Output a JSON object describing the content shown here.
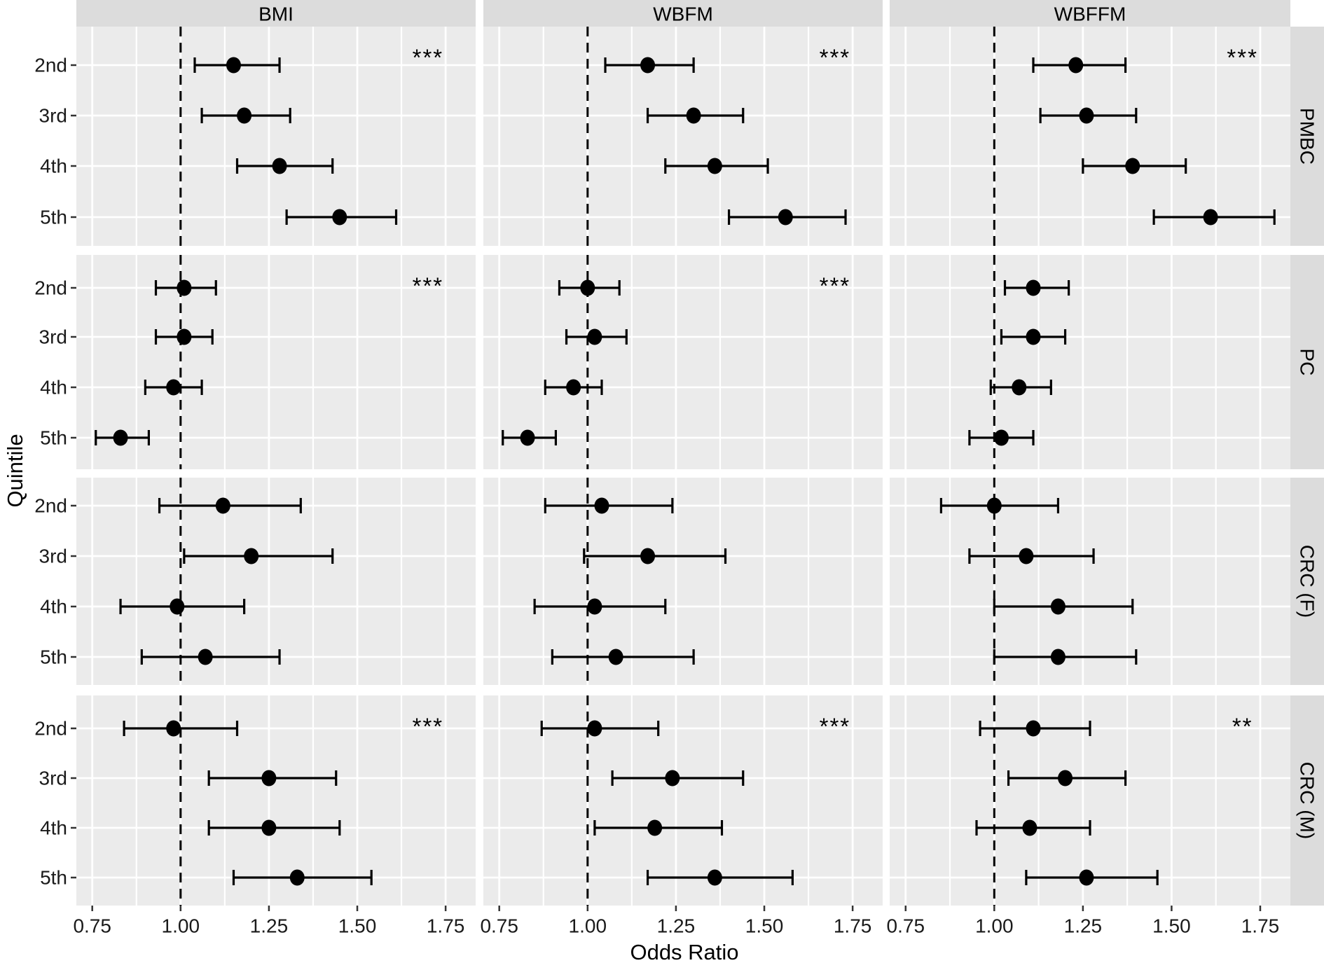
{
  "colors": {
    "background": "#FFFFFF",
    "panel_background": "#EBEBEB",
    "strip_background": "#DCDCDC",
    "gridline": "#FFFFFF",
    "data_color": "#000000",
    "axis_text": "#1A1A1A",
    "title_text": "#000000"
  },
  "chart_data": {
    "type": "forest",
    "title": "",
    "xlabel": "Odds Ratio",
    "ylabel": "Quintile",
    "x_domain": [
      0.705,
      1.835
    ],
    "x_tick_values": [
      0.75,
      1.0,
      1.25,
      1.5,
      1.75
    ],
    "x_tick_labels": [
      "0.75",
      "1.00",
      "1.25",
      "1.50",
      "1.75"
    ],
    "x_minor_gridlines": [
      0.875,
      1.125,
      1.375,
      1.625
    ],
    "reference_line": 1.0,
    "grid": "on",
    "facet_columns": [
      "BMI",
      "WBFM",
      "WBFFM"
    ],
    "facet_rows": [
      "PMBC",
      "PC",
      "CRC (F)",
      "CRC (M)"
    ],
    "y_categories": [
      "2nd",
      "3rd",
      "4th",
      "5th"
    ],
    "panels": [
      {
        "facet_col": "BMI",
        "facet_row": "PMBC",
        "significance": "***",
        "estimates": [
          {
            "quintile": "2nd",
            "or": 1.15,
            "ci_low": 1.04,
            "ci_high": 1.28
          },
          {
            "quintile": "3rd",
            "or": 1.18,
            "ci_low": 1.06,
            "ci_high": 1.31
          },
          {
            "quintile": "4th",
            "or": 1.28,
            "ci_low": 1.16,
            "ci_high": 1.43
          },
          {
            "quintile": "5th",
            "or": 1.45,
            "ci_low": 1.3,
            "ci_high": 1.61
          }
        ]
      },
      {
        "facet_col": "WBFM",
        "facet_row": "PMBC",
        "significance": "***",
        "estimates": [
          {
            "quintile": "2nd",
            "or": 1.17,
            "ci_low": 1.05,
            "ci_high": 1.3
          },
          {
            "quintile": "3rd",
            "or": 1.3,
            "ci_low": 1.17,
            "ci_high": 1.44
          },
          {
            "quintile": "4th",
            "or": 1.36,
            "ci_low": 1.22,
            "ci_high": 1.51
          },
          {
            "quintile": "5th",
            "or": 1.56,
            "ci_low": 1.4,
            "ci_high": 1.73
          }
        ]
      },
      {
        "facet_col": "WBFFM",
        "facet_row": "PMBC",
        "significance": "***",
        "estimates": [
          {
            "quintile": "2nd",
            "or": 1.23,
            "ci_low": 1.11,
            "ci_high": 1.37
          },
          {
            "quintile": "3rd",
            "or": 1.26,
            "ci_low": 1.13,
            "ci_high": 1.4
          },
          {
            "quintile": "4th",
            "or": 1.39,
            "ci_low": 1.25,
            "ci_high": 1.54
          },
          {
            "quintile": "5th",
            "or": 1.61,
            "ci_low": 1.45,
            "ci_high": 1.79
          }
        ]
      },
      {
        "facet_col": "BMI",
        "facet_row": "PC",
        "significance": "***",
        "estimates": [
          {
            "quintile": "2nd",
            "or": 1.01,
            "ci_low": 0.93,
            "ci_high": 1.1
          },
          {
            "quintile": "3rd",
            "or": 1.01,
            "ci_low": 0.93,
            "ci_high": 1.09
          },
          {
            "quintile": "4th",
            "or": 0.98,
            "ci_low": 0.9,
            "ci_high": 1.06
          },
          {
            "quintile": "5th",
            "or": 0.83,
            "ci_low": 0.76,
            "ci_high": 0.91
          }
        ]
      },
      {
        "facet_col": "WBFM",
        "facet_row": "PC",
        "significance": "***",
        "estimates": [
          {
            "quintile": "2nd",
            "or": 1.0,
            "ci_low": 0.92,
            "ci_high": 1.09
          },
          {
            "quintile": "3rd",
            "or": 1.02,
            "ci_low": 0.94,
            "ci_high": 1.11
          },
          {
            "quintile": "4th",
            "or": 0.96,
            "ci_low": 0.88,
            "ci_high": 1.04
          },
          {
            "quintile": "5th",
            "or": 0.83,
            "ci_low": 0.76,
            "ci_high": 0.91
          }
        ]
      },
      {
        "facet_col": "WBFFM",
        "facet_row": "PC",
        "significance": "",
        "estimates": [
          {
            "quintile": "2nd",
            "or": 1.11,
            "ci_low": 1.03,
            "ci_high": 1.21
          },
          {
            "quintile": "3rd",
            "or": 1.11,
            "ci_low": 1.02,
            "ci_high": 1.2
          },
          {
            "quintile": "4th",
            "or": 1.07,
            "ci_low": 0.99,
            "ci_high": 1.16
          },
          {
            "quintile": "5th",
            "or": 1.02,
            "ci_low": 0.93,
            "ci_high": 1.11
          }
        ]
      },
      {
        "facet_col": "BMI",
        "facet_row": "CRC (F)",
        "significance": "",
        "estimates": [
          {
            "quintile": "2nd",
            "or": 1.12,
            "ci_low": 0.94,
            "ci_high": 1.34
          },
          {
            "quintile": "3rd",
            "or": 1.2,
            "ci_low": 1.01,
            "ci_high": 1.43
          },
          {
            "quintile": "4th",
            "or": 0.99,
            "ci_low": 0.83,
            "ci_high": 1.18
          },
          {
            "quintile": "5th",
            "or": 1.07,
            "ci_low": 0.89,
            "ci_high": 1.28
          }
        ]
      },
      {
        "facet_col": "WBFM",
        "facet_row": "CRC (F)",
        "significance": "",
        "estimates": [
          {
            "quintile": "2nd",
            "or": 1.04,
            "ci_low": 0.88,
            "ci_high": 1.24
          },
          {
            "quintile": "3rd",
            "or": 1.17,
            "ci_low": 0.99,
            "ci_high": 1.39
          },
          {
            "quintile": "4th",
            "or": 1.02,
            "ci_low": 0.85,
            "ci_high": 1.22
          },
          {
            "quintile": "5th",
            "or": 1.08,
            "ci_low": 0.9,
            "ci_high": 1.3
          }
        ]
      },
      {
        "facet_col": "WBFFM",
        "facet_row": "CRC (F)",
        "significance": "",
        "estimates": [
          {
            "quintile": "2nd",
            "or": 1.0,
            "ci_low": 0.85,
            "ci_high": 1.18
          },
          {
            "quintile": "3rd",
            "or": 1.09,
            "ci_low": 0.93,
            "ci_high": 1.28
          },
          {
            "quintile": "4th",
            "or": 1.18,
            "ci_low": 1.0,
            "ci_high": 1.39
          },
          {
            "quintile": "5th",
            "or": 1.18,
            "ci_low": 1.0,
            "ci_high": 1.4
          }
        ]
      },
      {
        "facet_col": "BMI",
        "facet_row": "CRC (M)",
        "significance": "***",
        "estimates": [
          {
            "quintile": "2nd",
            "or": 0.98,
            "ci_low": 0.84,
            "ci_high": 1.16
          },
          {
            "quintile": "3rd",
            "or": 1.25,
            "ci_low": 1.08,
            "ci_high": 1.44
          },
          {
            "quintile": "4th",
            "or": 1.25,
            "ci_low": 1.08,
            "ci_high": 1.45
          },
          {
            "quintile": "5th",
            "or": 1.33,
            "ci_low": 1.15,
            "ci_high": 1.54
          }
        ]
      },
      {
        "facet_col": "WBFM",
        "facet_row": "CRC (M)",
        "significance": "***",
        "estimates": [
          {
            "quintile": "2nd",
            "or": 1.02,
            "ci_low": 0.87,
            "ci_high": 1.2
          },
          {
            "quintile": "3rd",
            "or": 1.24,
            "ci_low": 1.07,
            "ci_high": 1.44
          },
          {
            "quintile": "4th",
            "or": 1.19,
            "ci_low": 1.02,
            "ci_high": 1.38
          },
          {
            "quintile": "5th",
            "or": 1.36,
            "ci_low": 1.17,
            "ci_high": 1.58
          }
        ]
      },
      {
        "facet_col": "WBFFM",
        "facet_row": "CRC (M)",
        "significance": "**",
        "estimates": [
          {
            "quintile": "2nd",
            "or": 1.11,
            "ci_low": 0.96,
            "ci_high": 1.27
          },
          {
            "quintile": "3rd",
            "or": 1.2,
            "ci_low": 1.04,
            "ci_high": 1.37
          },
          {
            "quintile": "4th",
            "or": 1.1,
            "ci_low": 0.95,
            "ci_high": 1.27
          },
          {
            "quintile": "5th",
            "or": 1.26,
            "ci_low": 1.09,
            "ci_high": 1.46
          }
        ]
      }
    ]
  }
}
